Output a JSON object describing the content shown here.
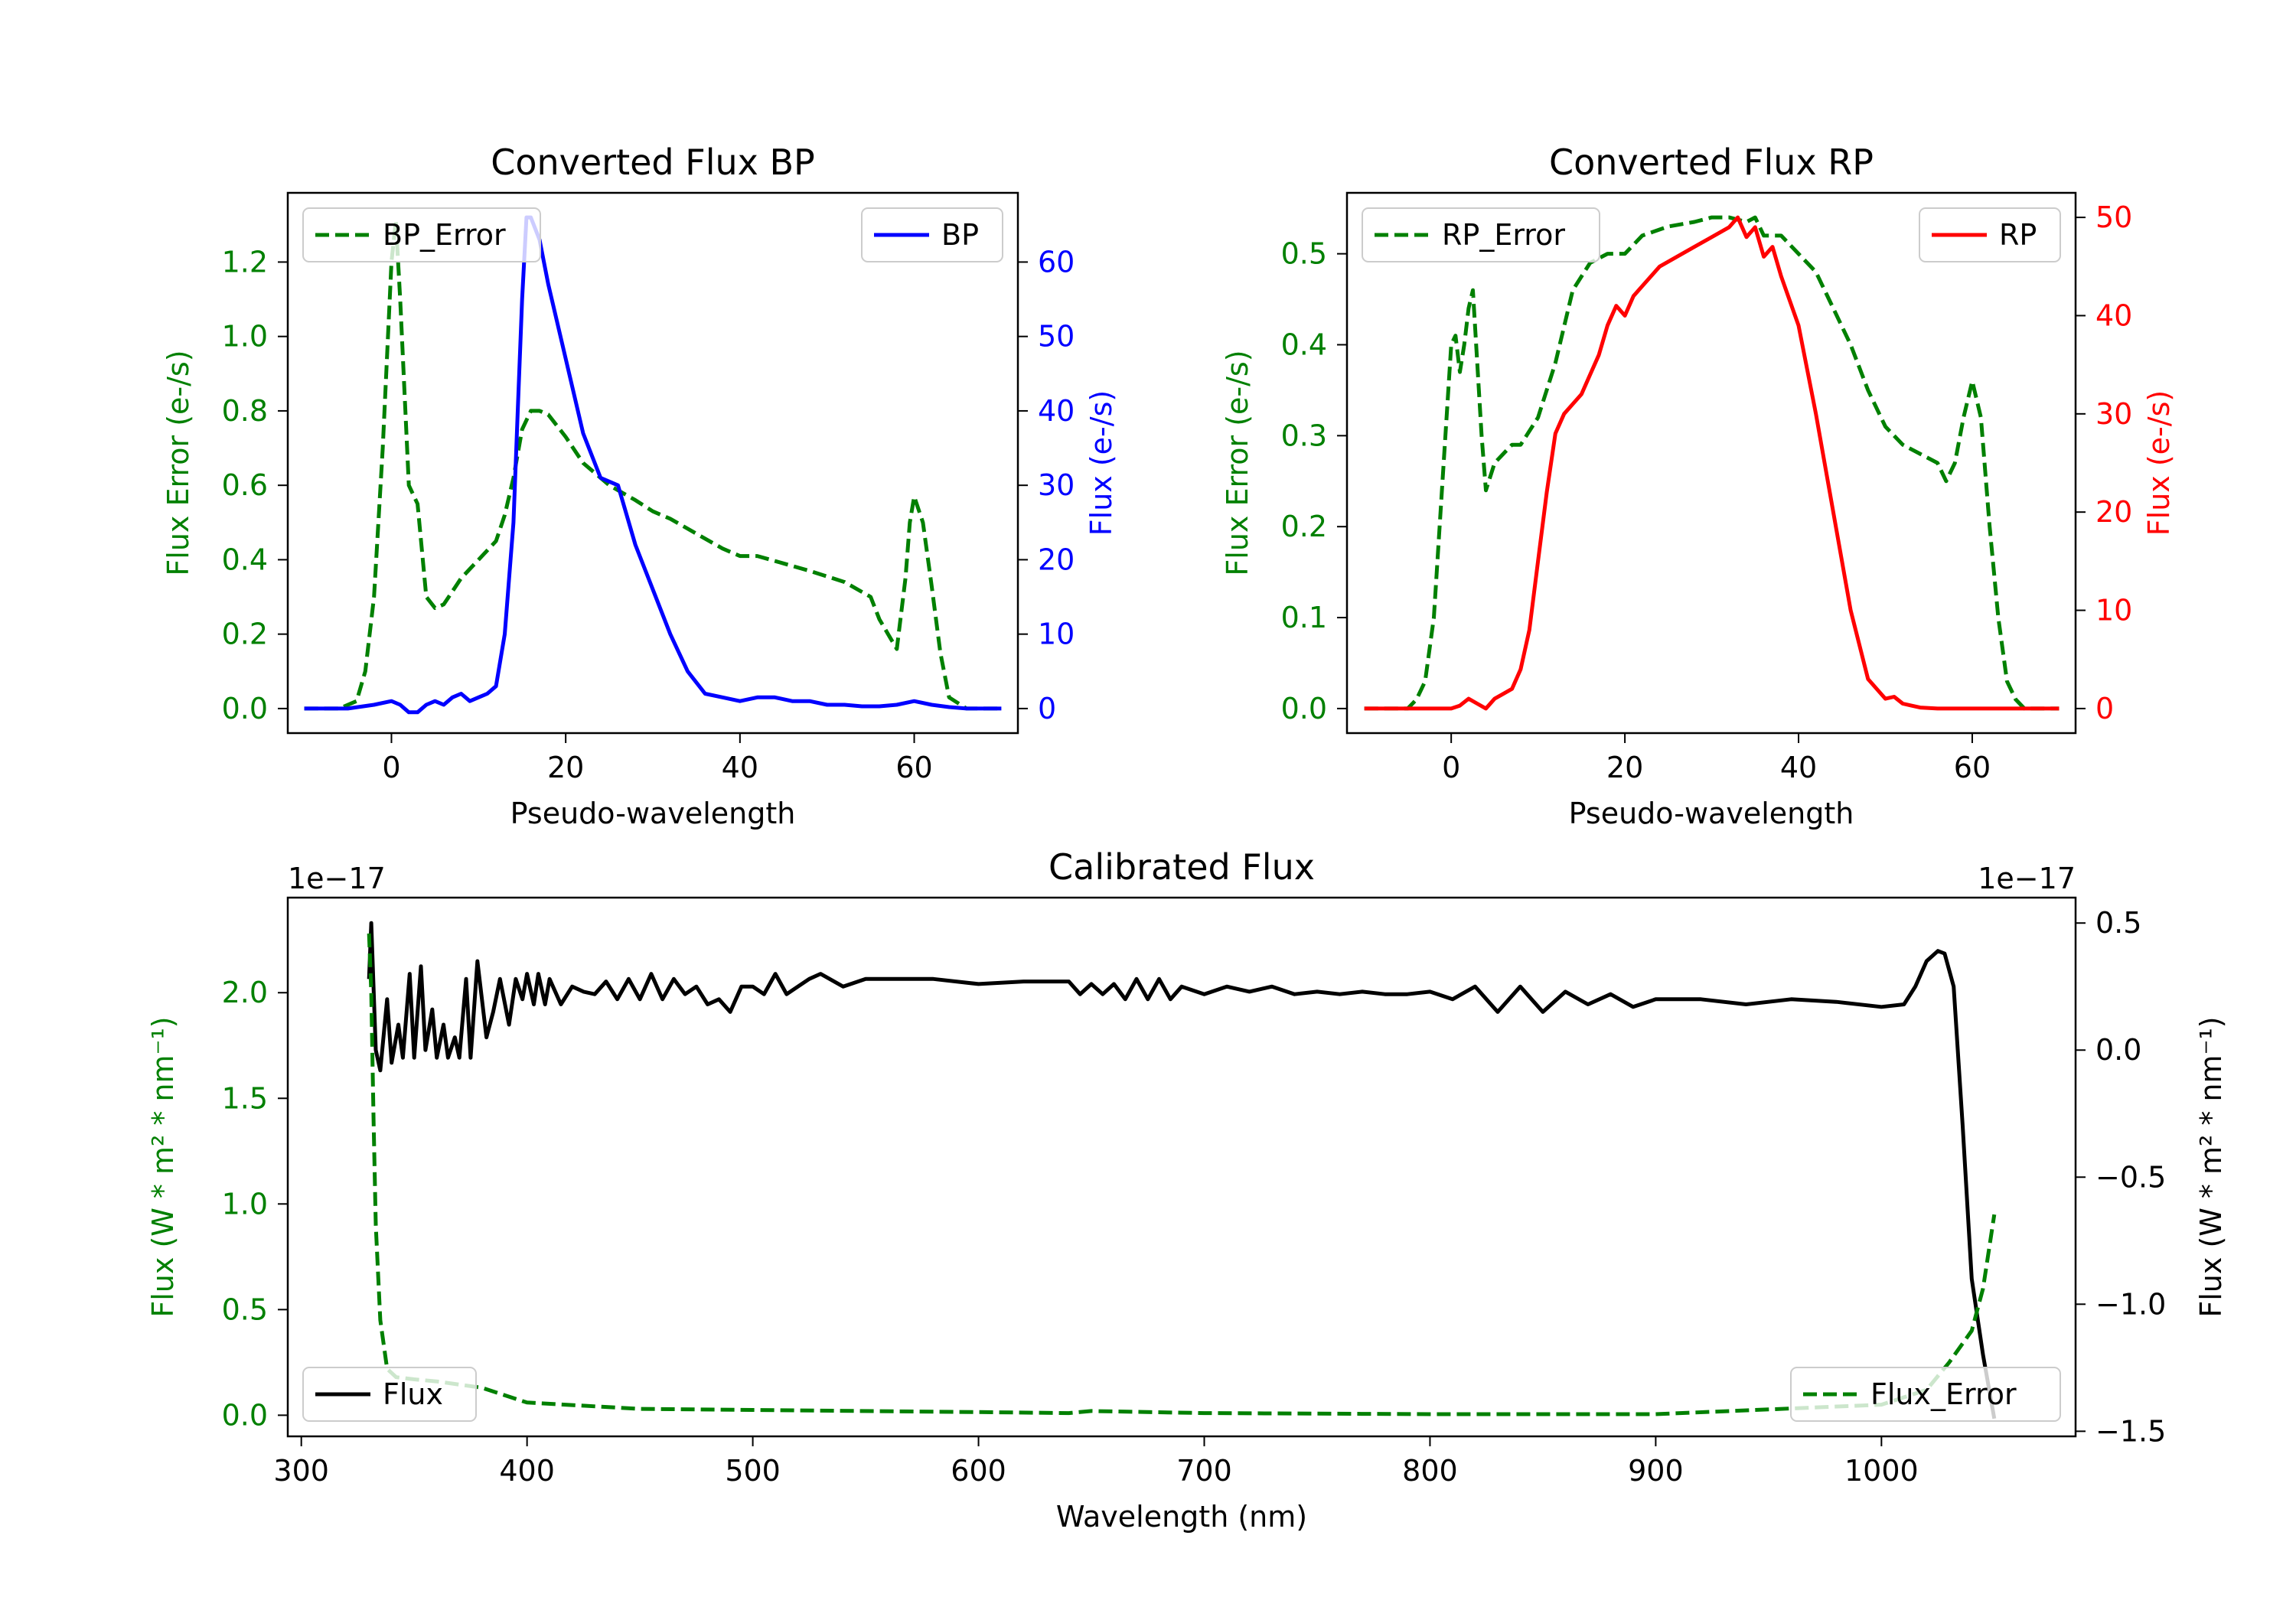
{
  "colors": {
    "green": "#008000",
    "blue": "#0000ff",
    "red": "#ff0000",
    "black": "#000000",
    "frame": "#000000",
    "legend_border": "#cccccc"
  },
  "chart_data": [
    {
      "id": "bp",
      "type": "line",
      "title": "Converted Flux BP",
      "xlabel": "Pseudo-wavelength",
      "ylabel_left": "Flux Error (e-/s)",
      "ylabel_right": "Flux (e-/s)",
      "xlim": [
        -11.9,
        71.9
      ],
      "ylim_left": [
        -0.066,
        1.386
      ],
      "ylim_right": [
        -3.3,
        69.3
      ],
      "xticks": [
        0,
        20,
        40,
        60
      ],
      "xtick_labels": [
        "0",
        "20",
        "40",
        "60"
      ],
      "yticks_left": [
        0.0,
        0.2,
        0.4,
        0.6,
        0.8,
        1.0,
        1.2
      ],
      "ytick_labels_left": [
        "0.0",
        "0.2",
        "0.4",
        "0.6",
        "0.8",
        "1.0",
        "1.2"
      ],
      "yticks_right": [
        0,
        10,
        20,
        30,
        40,
        50,
        60
      ],
      "ytick_labels_right": [
        "0",
        "10",
        "20",
        "30",
        "40",
        "50",
        "60"
      ],
      "legend_left": {
        "label": "BP_Error",
        "position": "upper left"
      },
      "legend_right": {
        "label": "BP",
        "position": "upper right"
      },
      "series": [
        {
          "name": "BP_Error",
          "axis": "left",
          "color": "#008000",
          "style": "dashed",
          "x": [
            -10,
            -6,
            -4,
            -3,
            -2,
            -1,
            0,
            0.5,
            1,
            2,
            3,
            4,
            5,
            6,
            8,
            10,
            12,
            13,
            14,
            15,
            16,
            17,
            18,
            20,
            22,
            25,
            28,
            30,
            32,
            35,
            38,
            40,
            42,
            45,
            48,
            52,
            55,
            56,
            57,
            58,
            59,
            59.5,
            60,
            61,
            62,
            63,
            64,
            66,
            70
          ],
          "y": [
            0.0,
            0.0,
            0.02,
            0.1,
            0.3,
            0.7,
            1.2,
            1.31,
            1.1,
            0.6,
            0.55,
            0.3,
            0.27,
            0.28,
            0.35,
            0.4,
            0.45,
            0.52,
            0.62,
            0.75,
            0.8,
            0.8,
            0.79,
            0.73,
            0.66,
            0.6,
            0.56,
            0.53,
            0.51,
            0.47,
            0.43,
            0.41,
            0.41,
            0.39,
            0.37,
            0.34,
            0.3,
            0.24,
            0.2,
            0.16,
            0.35,
            0.5,
            0.57,
            0.5,
            0.33,
            0.15,
            0.03,
            0.0,
            0.0
          ]
        },
        {
          "name": "BP",
          "axis": "right",
          "color": "#0000ff",
          "style": "solid",
          "x": [
            -10,
            -5,
            -2,
            0,
            1,
            2,
            3,
            4,
            5,
            6,
            7,
            8,
            9,
            10,
            11,
            12,
            13,
            14,
            14.5,
            15,
            15.5,
            16,
            17,
            18,
            19,
            20,
            22,
            24,
            26,
            28,
            30,
            32,
            34,
            36,
            38,
            40,
            42,
            44,
            46,
            48,
            50,
            52,
            54,
            56,
            58,
            60,
            62,
            64,
            66,
            70
          ],
          "y": [
            0,
            0,
            0.5,
            1,
            0.5,
            -0.5,
            -0.5,
            0.5,
            1,
            0.5,
            1.5,
            2,
            1,
            1.5,
            2,
            3,
            10,
            25,
            40,
            55,
            66,
            66,
            63,
            57,
            52,
            47,
            37,
            31,
            30,
            22,
            16,
            10,
            5,
            2,
            1.5,
            1,
            1.5,
            1.5,
            1,
            1,
            0.5,
            0.5,
            0.3,
            0.3,
            0.5,
            1,
            0.5,
            0.2,
            0,
            0
          ]
        }
      ]
    },
    {
      "id": "rp",
      "type": "line",
      "title": "Converted Flux RP",
      "xlabel": "Pseudo-wavelength",
      "ylabel_left": "Flux Error (e-/s)",
      "ylabel_right": "Flux (e-/s)",
      "xlim": [
        -12.0,
        71.9
      ],
      "ylim_left": [
        -0.027,
        0.567
      ],
      "ylim_right": [
        -2.5,
        52.5
      ],
      "xticks": [
        0,
        20,
        40,
        60
      ],
      "xtick_labels": [
        "0",
        "20",
        "40",
        "60"
      ],
      "yticks_left": [
        0.0,
        0.1,
        0.2,
        0.3,
        0.4,
        0.5
      ],
      "ytick_labels_left": [
        "0.0",
        "0.1",
        "0.2",
        "0.3",
        "0.4",
        "0.5"
      ],
      "yticks_right": [
        0,
        10,
        20,
        30,
        40,
        50
      ],
      "ytick_labels_right": [
        "0",
        "10",
        "20",
        "30",
        "40",
        "50"
      ],
      "legend_left": {
        "label": "RP_Error",
        "position": "upper left"
      },
      "legend_right": {
        "label": "RP",
        "position": "upper right"
      },
      "series": [
        {
          "name": "RP_Error",
          "axis": "left",
          "color": "#008000",
          "style": "dashed",
          "x": [
            -10,
            -5,
            -4,
            -3,
            -2,
            -1,
            0,
            0.5,
            1,
            1.5,
            2,
            2.5,
            3,
            3.5,
            4,
            5,
            6,
            7,
            8,
            10,
            12,
            14,
            16,
            18,
            20,
            22,
            25,
            28,
            30,
            32,
            34,
            35,
            36,
            38,
            40,
            42,
            44,
            46,
            48,
            50,
            52,
            54,
            56,
            57,
            58,
            59,
            60,
            61,
            62,
            63,
            64,
            65,
            66,
            70
          ],
          "y": [
            0.0,
            0.0,
            0.01,
            0.03,
            0.1,
            0.25,
            0.4,
            0.41,
            0.37,
            0.4,
            0.44,
            0.46,
            0.38,
            0.3,
            0.24,
            0.27,
            0.28,
            0.29,
            0.29,
            0.32,
            0.38,
            0.46,
            0.49,
            0.5,
            0.5,
            0.52,
            0.53,
            0.535,
            0.54,
            0.54,
            0.535,
            0.54,
            0.52,
            0.52,
            0.5,
            0.48,
            0.44,
            0.4,
            0.35,
            0.31,
            0.29,
            0.28,
            0.27,
            0.25,
            0.27,
            0.32,
            0.36,
            0.32,
            0.2,
            0.1,
            0.03,
            0.01,
            0.0,
            0.0
          ]
        },
        {
          "name": "RP",
          "axis": "right",
          "color": "#ff0000",
          "style": "solid",
          "x": [
            -10,
            -5,
            0,
            1,
            2,
            3,
            4,
            5,
            6,
            7,
            8,
            9,
            10,
            11,
            12,
            13,
            14,
            15,
            16,
            17,
            18,
            19,
            20,
            21,
            22,
            24,
            26,
            28,
            30,
            32,
            33,
            34,
            35,
            36,
            37,
            38,
            40,
            42,
            44,
            46,
            48,
            50,
            51,
            52,
            53,
            54,
            56,
            60,
            65,
            70
          ],
          "y": [
            0,
            0,
            0,
            0.3,
            1,
            0.5,
            0,
            1,
            1.5,
            2,
            4,
            8,
            15,
            22,
            28,
            30,
            31,
            32,
            34,
            36,
            39,
            41,
            40,
            42,
            43,
            45,
            46,
            47,
            48,
            49,
            50,
            48,
            49,
            46,
            47,
            44,
            39,
            30,
            20,
            10,
            3,
            1,
            1.2,
            0.5,
            0.3,
            0.1,
            0,
            0,
            0,
            0
          ]
        }
      ]
    },
    {
      "id": "cal",
      "type": "line",
      "title": "Calibrated Flux",
      "xlabel": "Wavelength (nm)",
      "ylabel_left": "Flux (W * m² * nm⁻¹)",
      "ylabel_right": "Flux (W * m² * nm⁻¹)",
      "offset_left": "1e−17",
      "offset_right": "1e−17",
      "xlim": [
        294,
        1086
      ],
      "ylim_left": [
        -0.1,
        2.45
      ],
      "ylim_right": [
        -1.52,
        0.6
      ],
      "xticks": [
        300,
        400,
        500,
        600,
        700,
        800,
        900,
        1000
      ],
      "xtick_labels": [
        "300",
        "400",
        "500",
        "600",
        "700",
        "800",
        "900",
        "1000"
      ],
      "yticks_left": [
        0.0,
        0.5,
        1.0,
        1.5,
        2.0
      ],
      "ytick_labels_left": [
        "0.0",
        "0.5",
        "1.0",
        "1.5",
        "2.0"
      ],
      "yticks_right": [
        -1.5,
        -1.0,
        -0.5,
        0.0,
        0.5
      ],
      "ytick_labels_right": [
        "−1.5",
        "−1.0",
        "−0.5",
        "0.0",
        "0.5"
      ],
      "legend_left": {
        "label": "Flux",
        "position": "lower left"
      },
      "legend_right": {
        "label": "Flux_Error",
        "position": "lower right"
      },
      "series": [
        {
          "name": "Flux",
          "axis": "right",
          "color": "#000000",
          "style": "solid",
          "x": [
            330,
            331,
            333,
            335,
            338,
            340,
            343,
            345,
            348,
            350,
            353,
            355,
            358,
            360,
            363,
            365,
            368,
            370,
            373,
            375,
            378,
            382,
            385,
            388,
            392,
            395,
            398,
            400,
            403,
            405,
            408,
            410,
            415,
            420,
            425,
            430,
            435,
            440,
            445,
            450,
            455,
            460,
            465,
            470,
            475,
            480,
            485,
            490,
            495,
            500,
            505,
            510,
            515,
            520,
            525,
            530,
            540,
            550,
            560,
            580,
            600,
            620,
            640,
            645,
            650,
            655,
            660,
            665,
            670,
            675,
            680,
            685,
            690,
            700,
            710,
            720,
            730,
            740,
            750,
            760,
            770,
            780,
            790,
            800,
            810,
            820,
            830,
            840,
            850,
            860,
            870,
            880,
            890,
            900,
            920,
            940,
            960,
            980,
            1000,
            1010,
            1015,
            1020,
            1025,
            1028,
            1032,
            1036,
            1040,
            1045,
            1050
          ],
          "y": [
            0.28,
            0.5,
            0.0,
            -0.08,
            0.2,
            -0.05,
            0.1,
            -0.03,
            0.3,
            -0.03,
            0.33,
            0.0,
            0.16,
            -0.03,
            0.1,
            -0.03,
            0.05,
            -0.03,
            0.28,
            -0.03,
            0.35,
            0.05,
            0.15,
            0.28,
            0.1,
            0.28,
            0.2,
            0.3,
            0.18,
            0.3,
            0.18,
            0.28,
            0.18,
            0.25,
            0.23,
            0.22,
            0.27,
            0.2,
            0.28,
            0.2,
            0.3,
            0.2,
            0.28,
            0.22,
            0.25,
            0.18,
            0.2,
            0.15,
            0.25,
            0.25,
            0.22,
            0.3,
            0.22,
            0.25,
            0.28,
            0.3,
            0.25,
            0.28,
            0.28,
            0.28,
            0.26,
            0.27,
            0.27,
            0.22,
            0.26,
            0.22,
            0.26,
            0.2,
            0.28,
            0.2,
            0.28,
            0.2,
            0.25,
            0.22,
            0.25,
            0.23,
            0.25,
            0.22,
            0.23,
            0.22,
            0.23,
            0.22,
            0.22,
            0.23,
            0.2,
            0.25,
            0.15,
            0.25,
            0.15,
            0.23,
            0.18,
            0.22,
            0.17,
            0.2,
            0.2,
            0.18,
            0.2,
            0.19,
            0.17,
            0.18,
            0.25,
            0.35,
            0.39,
            0.38,
            0.25,
            -0.3,
            -0.9,
            -1.2,
            -1.45
          ]
        },
        {
          "name": "Flux_Error",
          "axis": "left",
          "color": "#008000",
          "style": "dashed",
          "x": [
            330,
            331,
            332,
            333,
            335,
            338,
            342,
            350,
            360,
            380,
            400,
            450,
            500,
            600,
            640,
            650,
            700,
            800,
            900,
            1000,
            1020,
            1030,
            1040,
            1045,
            1050
          ],
          "y": [
            2.28,
            2.0,
            1.4,
            0.9,
            0.45,
            0.22,
            0.18,
            0.17,
            0.16,
            0.13,
            0.06,
            0.03,
            0.025,
            0.015,
            0.01,
            0.02,
            0.01,
            0.005,
            0.005,
            0.05,
            0.12,
            0.25,
            0.4,
            0.6,
            0.95
          ]
        }
      ]
    }
  ]
}
